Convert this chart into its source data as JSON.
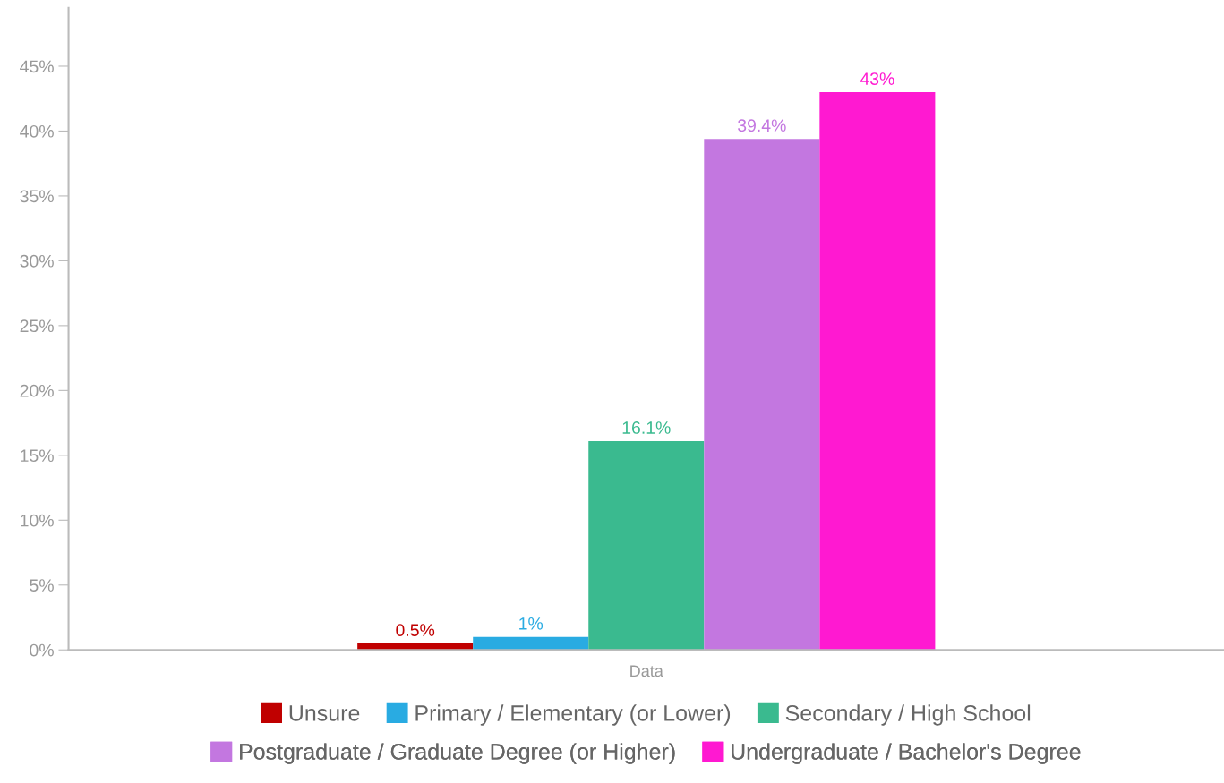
{
  "chart_data": {
    "type": "bar",
    "categories": [
      "Data"
    ],
    "series": [
      {
        "name": "Unsure",
        "color": "#c00000",
        "values": [
          0.5
        ],
        "value_labels": [
          "0.5%"
        ]
      },
      {
        "name": "Primary / Elementary (or Lower)",
        "color": "#29abe2",
        "values": [
          1
        ],
        "value_labels": [
          "1%"
        ]
      },
      {
        "name": "Secondary / High School",
        "color": "#3aba8f",
        "values": [
          16.1
        ],
        "value_labels": [
          "16.1%"
        ]
      },
      {
        "name": "Postgraduate / Graduate Degree (or Higher)",
        "color": "#c377e0",
        "values": [
          39.4
        ],
        "value_labels": [
          "39.4%"
        ]
      },
      {
        "name": "Undergraduate / Bachelor's Degree",
        "color": "#ff19d1",
        "values": [
          43
        ],
        "value_labels": [
          "43%"
        ]
      }
    ],
    "ylim": [
      0,
      49.5
    ],
    "yticks": [
      {
        "value": 0,
        "label": "0%"
      },
      {
        "value": 5,
        "label": "5%"
      },
      {
        "value": 10,
        "label": "10%"
      },
      {
        "value": 15,
        "label": "15%"
      },
      {
        "value": 20,
        "label": "20%"
      },
      {
        "value": 25,
        "label": "25%"
      },
      {
        "value": 30,
        "label": "30%"
      },
      {
        "value": 35,
        "label": "35%"
      },
      {
        "value": 40,
        "label": "40%"
      },
      {
        "value": 45,
        "label": "45%"
      }
    ],
    "grid": false,
    "legend": "bottom"
  }
}
